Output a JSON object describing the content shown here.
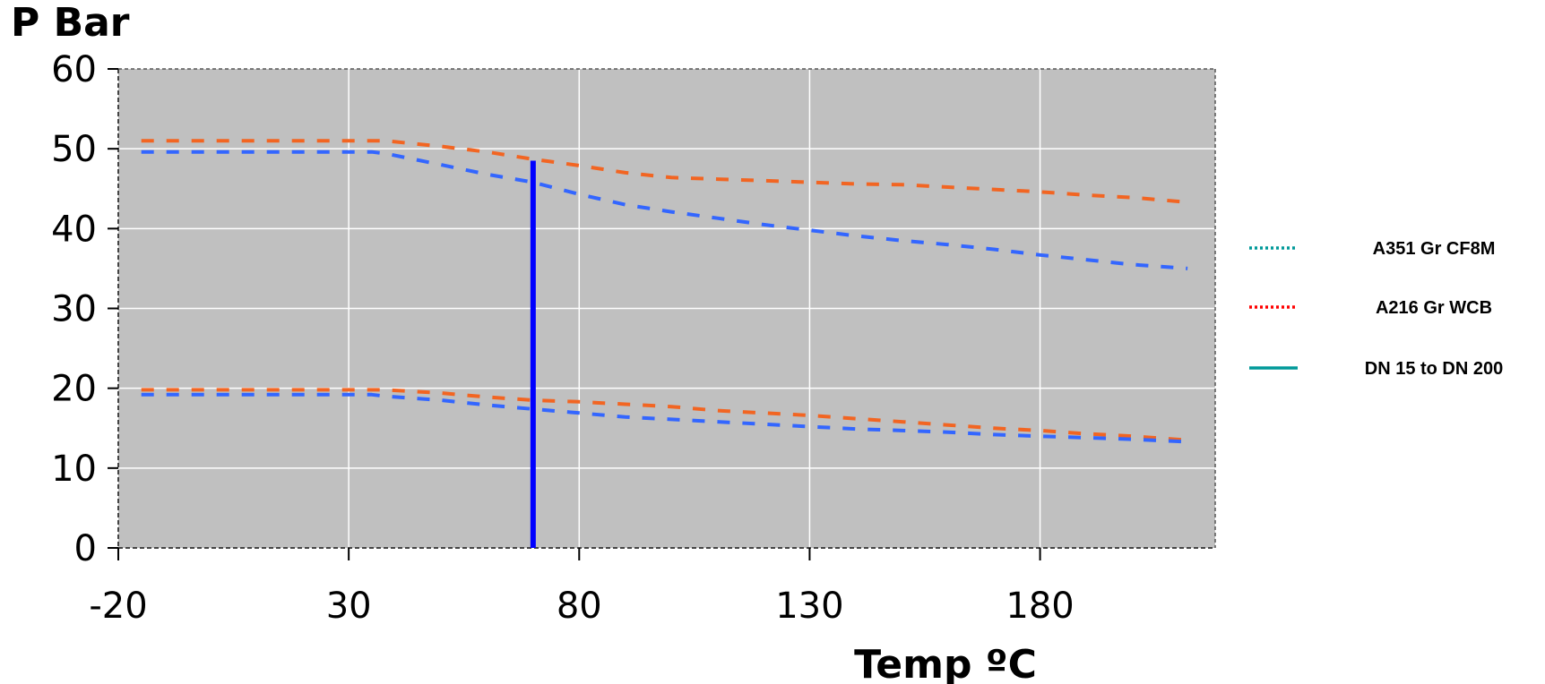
{
  "chart_data": {
    "type": "line",
    "ylabel": "P Bar",
    "xlabel": "Temp ºC",
    "xlim": [
      -20,
      218
    ],
    "ylim": [
      0,
      60
    ],
    "xticks": [
      -20,
      30,
      80,
      130,
      180
    ],
    "yticks": [
      0,
      10,
      20,
      30,
      40,
      50,
      60
    ],
    "grid": true,
    "plot_background": "#c0c0c0",
    "legend_position": "right",
    "legend": [
      {
        "label": "A351 Gr CF8M",
        "color": "#009999",
        "style": "dotted"
      },
      {
        "label": "A216 Gr WCB",
        "color": "#ff0000",
        "style": "dotted"
      },
      {
        "label": "DN 15 to DN 200",
        "color": "#009999",
        "style": "solid"
      }
    ],
    "series": [
      {
        "color": "#f26522",
        "style": "dashed",
        "x": [
          -15,
          35,
          38,
          50,
          60,
          70,
          80,
          90,
          100,
          110,
          120,
          130,
          140,
          150,
          160,
          170,
          180,
          190,
          200,
          212
        ],
        "y": [
          51,
          51,
          51,
          50.3,
          49.6,
          48.7,
          47.9,
          47,
          46.4,
          46.2,
          46,
          45.8,
          45.6,
          45.5,
          45.2,
          44.9,
          44.6,
          44.2,
          43.9,
          43.3
        ]
      },
      {
        "color": "#3366ff",
        "style": "dashed",
        "x": [
          -15,
          35,
          38,
          50,
          60,
          70,
          80,
          90,
          100,
          110,
          120,
          130,
          140,
          150,
          160,
          170,
          180,
          190,
          200,
          212
        ],
        "y": [
          49.6,
          49.6,
          49.4,
          48,
          46.8,
          45.8,
          44.3,
          43,
          42.1,
          41.3,
          40.5,
          39.8,
          39.1,
          38.5,
          38,
          37.4,
          36.7,
          36.1,
          35.5,
          35
        ]
      },
      {
        "color": "#f26522",
        "style": "dashed",
        "x": [
          -15,
          35,
          38,
          50,
          60,
          70,
          80,
          90,
          100,
          110,
          120,
          130,
          140,
          150,
          160,
          170,
          180,
          190,
          200,
          212
        ],
        "y": [
          19.8,
          19.8,
          19.8,
          19.4,
          18.9,
          18.5,
          18.3,
          18,
          17.7,
          17.2,
          16.9,
          16.6,
          16.2,
          15.8,
          15.4,
          15,
          14.7,
          14.3,
          14,
          13.5
        ]
      },
      {
        "color": "#3366ff",
        "style": "dashed",
        "x": [
          -15,
          35,
          38,
          50,
          60,
          70,
          80,
          90,
          100,
          110,
          120,
          130,
          140,
          150,
          160,
          170,
          180,
          190,
          200,
          212
        ],
        "y": [
          19.2,
          19.2,
          19,
          18.5,
          17.9,
          17.4,
          16.9,
          16.4,
          16.1,
          15.8,
          15.5,
          15.2,
          14.9,
          14.7,
          14.5,
          14.2,
          14,
          13.8,
          13.6,
          13.3
        ]
      }
    ],
    "marker_line": {
      "x": 70,
      "y_from": 0,
      "y_to": 48.5,
      "color": "#0000ff"
    }
  }
}
